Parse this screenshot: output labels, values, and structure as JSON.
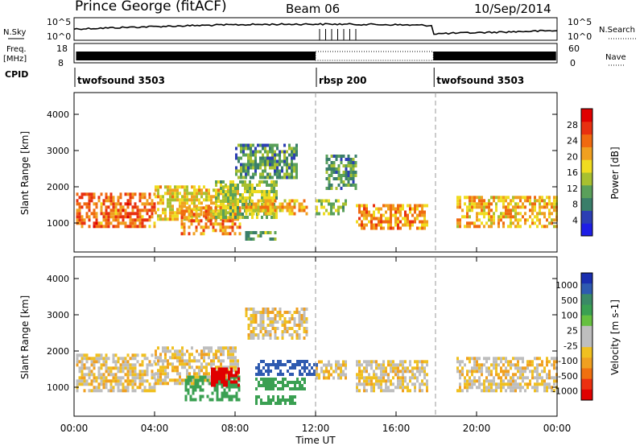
{
  "header": {
    "station": "Prince George (fitACF)",
    "beam": "Beam 06",
    "date": "10/Sep/2014"
  },
  "top_panels": {
    "nsky_label": "N.Sky",
    "nsearch_label": "N.Search",
    "noise_ticks": [
      "10^5",
      "10^0"
    ],
    "freq_label": "Freq.",
    "freq_unit": "[MHz]",
    "freq_ticks": [
      "18",
      "8"
    ],
    "nave_label": "Nave",
    "nave_ticks": [
      "60",
      "0"
    ],
    "cpid_label": "CPID",
    "cpid_segments": [
      {
        "name": "twofsound 3503",
        "start_hour": 0.0
      },
      {
        "name": "rbsp 200",
        "start_hour": 12.0
      },
      {
        "name": "twofsound 3503",
        "start_hour": 17.85
      }
    ]
  },
  "colors": {
    "power_scale": [
      "#1e1ee6",
      "#2c3fb4",
      "#3a7e6a",
      "#5aa05a",
      "#a8c030",
      "#f0dc20",
      "#f0a020",
      "#f06a10",
      "#e83010",
      "#e00000"
    ],
    "velocity_scale": [
      "#1a2eb0",
      "#2e5ab0",
      "#3a8a66",
      "#3aa052",
      "#66c040",
      "#bebebe",
      "#bebebe",
      "#f0c020",
      "#f0a020",
      "#f07010",
      "#ec3010",
      "#e00000"
    ]
  },
  "chart_data": [
    {
      "type": "heatmap",
      "panel": "power",
      "ylabel": "Slant Range [km]",
      "ylim": [
        200,
        4600
      ],
      "xlim": [
        0,
        24
      ],
      "yticks": [
        "1000",
        "2000",
        "3000",
        "4000"
      ],
      "colorbar": {
        "label": "Power [dB]",
        "ticks": [
          "4",
          "8",
          "12",
          "16",
          "20",
          "24",
          "28"
        ],
        "range": [
          0,
          32
        ]
      },
      "echo_regions": [
        {
          "x": [
            0.1,
            4.0
          ],
          "y": [
            950,
            1900
          ],
          "value": 24
        },
        {
          "x": [
            4.0,
            8.2
          ],
          "y": [
            1150,
            2050
          ],
          "value": 18
        },
        {
          "x": [
            5.3,
            8.2
          ],
          "y": [
            750,
            1500
          ],
          "value": 22
        },
        {
          "x": [
            7.0,
            10.0
          ],
          "y": [
            1200,
            2200
          ],
          "value": 14
        },
        {
          "x": [
            8.0,
            11.0
          ],
          "y": [
            2300,
            3200
          ],
          "value": 10
        },
        {
          "x": [
            8.5,
            11.5
          ],
          "y": [
            1300,
            1700
          ],
          "value": 20
        },
        {
          "x": [
            8.5,
            10.0
          ],
          "y": [
            600,
            800
          ],
          "value": 12
        },
        {
          "x": [
            12.0,
            13.5
          ],
          "y": [
            1300,
            1700
          ],
          "value": 14
        },
        {
          "x": [
            12.5,
            14.0
          ],
          "y": [
            2000,
            2900
          ],
          "value": 10
        },
        {
          "x": [
            14.0,
            17.6
          ],
          "y": [
            900,
            1600
          ],
          "value": 22
        },
        {
          "x": [
            19.0,
            24.0
          ],
          "y": [
            950,
            1800
          ],
          "value": 20
        }
      ]
    },
    {
      "type": "heatmap",
      "panel": "velocity",
      "xlabel": "Time UT",
      "ylabel": "Slant Range [km]",
      "ylim": [
        200,
        4600
      ],
      "xlim": [
        0,
        24
      ],
      "xticks": [
        "00:00",
        "04:00",
        "08:00",
        "12:00",
        "16:00",
        "20:00",
        "00:00"
      ],
      "yticks": [
        "1000",
        "2000",
        "3000",
        "4000"
      ],
      "colorbar": {
        "label": "Velocity [m s-1]",
        "ticks": [
          "1000",
          "500",
          "100",
          "25",
          "-25",
          "-100",
          "-500",
          "-1000"
        ]
      },
      "echo_regions": [
        {
          "x": [
            0.1,
            4.0
          ],
          "y": [
            950,
            2000
          ],
          "value": 0
        },
        {
          "x": [
            4.0,
            8.2
          ],
          "y": [
            1150,
            2200
          ],
          "value": 0
        },
        {
          "x": [
            5.5,
            8.2
          ],
          "y": [
            700,
            1400
          ],
          "value": 150
        },
        {
          "x": [
            6.8,
            8.2
          ],
          "y": [
            1100,
            1600
          ],
          "value": -300
        },
        {
          "x": [
            8.5,
            11.5
          ],
          "y": [
            2400,
            3200
          ],
          "value": 0
        },
        {
          "x": [
            9.0,
            12.0
          ],
          "y": [
            1400,
            1800
          ],
          "value": 800
        },
        {
          "x": [
            9.0,
            11.5
          ],
          "y": [
            1000,
            1300
          ],
          "value": 150
        },
        {
          "x": [
            9.0,
            11.0
          ],
          "y": [
            600,
            800
          ],
          "value": 150
        },
        {
          "x": [
            12.0,
            13.5
          ],
          "y": [
            1300,
            1800
          ],
          "value": 0
        },
        {
          "x": [
            14.0,
            17.6
          ],
          "y": [
            950,
            1800
          ],
          "value": 0
        },
        {
          "x": [
            19.0,
            24.0
          ],
          "y": [
            950,
            1900
          ],
          "value": 0
        }
      ]
    }
  ]
}
